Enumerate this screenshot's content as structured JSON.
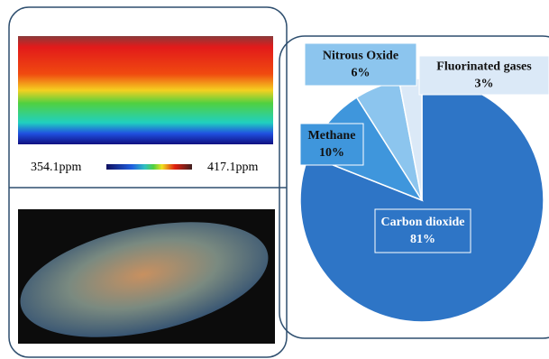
{
  "chart_data": {
    "type": "pie",
    "categories": [
      "Carbon dioxide",
      "Methane",
      "Nitrous Oxide",
      "Fluorinated gases"
    ],
    "values": [
      81,
      10,
      6,
      3
    ],
    "value_labels": [
      "81%",
      "10%",
      "6%",
      "3%"
    ],
    "colors": [
      "#2e75c6",
      "#3f96dc",
      "#8cc5ee",
      "#dbe9f7"
    ]
  },
  "map_legend": {
    "labels": [
      "354.1ppm",
      "417.1ppm"
    ]
  }
}
